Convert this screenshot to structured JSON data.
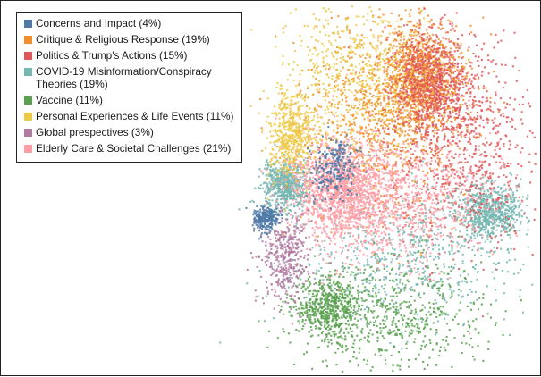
{
  "chart_data": {
    "type": "scatter",
    "title": "",
    "xlabel": "",
    "ylabel": "",
    "grid": false,
    "axes_visible": false,
    "legend_position": "top-left",
    "series": [
      {
        "name": "Concerns and Impact (4%)",
        "share": 4,
        "color": "#4e79a7"
      },
      {
        "name": "Critique & Religious Response (19%)",
        "share": 19,
        "color": "#f28e2b"
      },
      {
        "name": "Politics & Trump's Actions (15%)",
        "share": 15,
        "color": "#e15759"
      },
      {
        "name": "COVID-19 Misinformation/Conspiracy Theories (19%)",
        "share": 19,
        "color": "#76b7b2"
      },
      {
        "name": "Vaccine (11%)",
        "share": 11,
        "color": "#59a14f"
      },
      {
        "name": "Personal Experiences & Life Events (11%)",
        "share": 11,
        "color": "#edc948"
      },
      {
        "name": "Global prespectives (3%)",
        "share": 3,
        "color": "#b07aa1"
      },
      {
        "name": "Elderly Care & Societal Challenges (21%)",
        "share": 21,
        "color": "#ff9da7"
      }
    ]
  }
}
